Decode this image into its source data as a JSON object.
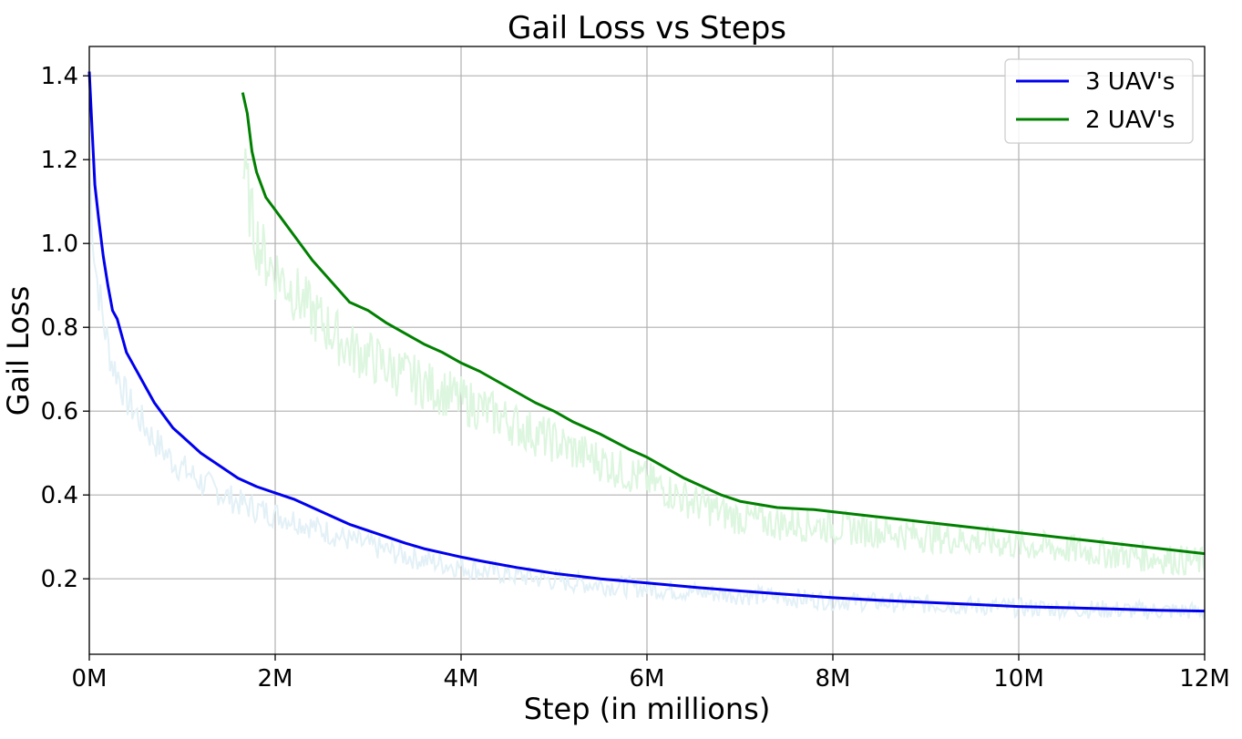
{
  "chart_data": {
    "type": "line",
    "title": "Gail Loss vs Steps",
    "xlabel": "Step (in millions)",
    "ylabel": "Gail Loss",
    "xlim": [
      0,
      12
    ],
    "ylim": [
      0.02,
      1.47
    ],
    "x_ticks": [
      0,
      2,
      4,
      6,
      8,
      10,
      12
    ],
    "x_tick_labels": [
      "0M",
      "2M",
      "4M",
      "6M",
      "8M",
      "10M",
      "12M"
    ],
    "y_ticks": [
      0.2,
      0.4,
      0.6,
      0.8,
      1.0,
      1.2,
      1.4
    ],
    "y_tick_labels": [
      "0.2",
      "0.4",
      "0.6",
      "0.8",
      "1.0",
      "1.2",
      "1.4"
    ],
    "grid": true,
    "legend_position": "top-right",
    "series": [
      {
        "name": "3 UAV's",
        "color": "#0000ee",
        "raw_color": "#e3f1f7",
        "x": [
          0.0,
          0.03,
          0.06,
          0.1,
          0.15,
          0.2,
          0.25,
          0.3,
          0.4,
          0.5,
          0.6,
          0.7,
          0.8,
          0.9,
          1.0,
          1.2,
          1.4,
          1.6,
          1.8,
          2.0,
          2.2,
          2.4,
          2.6,
          2.8,
          3.0,
          3.2,
          3.4,
          3.6,
          3.8,
          4.0,
          4.2,
          4.4,
          4.6,
          4.8,
          5.0,
          5.5,
          6.0,
          6.5,
          7.0,
          7.5,
          8.0,
          8.5,
          9.0,
          9.5,
          10.0,
          10.5,
          11.0,
          11.5,
          12.0
        ],
        "y": [
          1.41,
          1.27,
          1.14,
          1.06,
          0.97,
          0.9,
          0.84,
          0.82,
          0.74,
          0.7,
          0.66,
          0.62,
          0.59,
          0.56,
          0.54,
          0.5,
          0.47,
          0.44,
          0.42,
          0.405,
          0.39,
          0.37,
          0.35,
          0.33,
          0.315,
          0.3,
          0.285,
          0.272,
          0.262,
          0.252,
          0.243,
          0.235,
          0.227,
          0.22,
          0.213,
          0.2,
          0.19,
          0.18,
          0.171,
          0.163,
          0.155,
          0.149,
          0.144,
          0.139,
          0.134,
          0.131,
          0.128,
          0.125,
          0.123
        ]
      },
      {
        "name": "2 UAV's",
        "color": "#008000",
        "raw_color": "#ddf6df",
        "x": [
          1.65,
          1.7,
          1.75,
          1.8,
          1.9,
          2.0,
          2.1,
          2.2,
          2.4,
          2.6,
          2.8,
          3.0,
          3.2,
          3.4,
          3.6,
          3.8,
          4.0,
          4.2,
          4.4,
          4.6,
          4.8,
          5.0,
          5.2,
          5.5,
          5.8,
          6.0,
          6.2,
          6.4,
          6.6,
          6.8,
          7.0,
          7.4,
          7.8,
          8.0,
          8.4,
          8.8,
          9.2,
          9.6,
          10.0,
          10.4,
          10.8,
          11.2,
          11.6,
          12.0
        ],
        "y": [
          1.36,
          1.31,
          1.22,
          1.17,
          1.11,
          1.08,
          1.05,
          1.02,
          0.96,
          0.91,
          0.86,
          0.84,
          0.81,
          0.785,
          0.76,
          0.74,
          0.715,
          0.695,
          0.67,
          0.645,
          0.62,
          0.6,
          0.575,
          0.545,
          0.51,
          0.49,
          0.465,
          0.44,
          0.42,
          0.4,
          0.385,
          0.37,
          0.365,
          0.36,
          0.35,
          0.34,
          0.33,
          0.32,
          0.31,
          0.3,
          0.29,
          0.28,
          0.27,
          0.26
        ]
      }
    ]
  }
}
